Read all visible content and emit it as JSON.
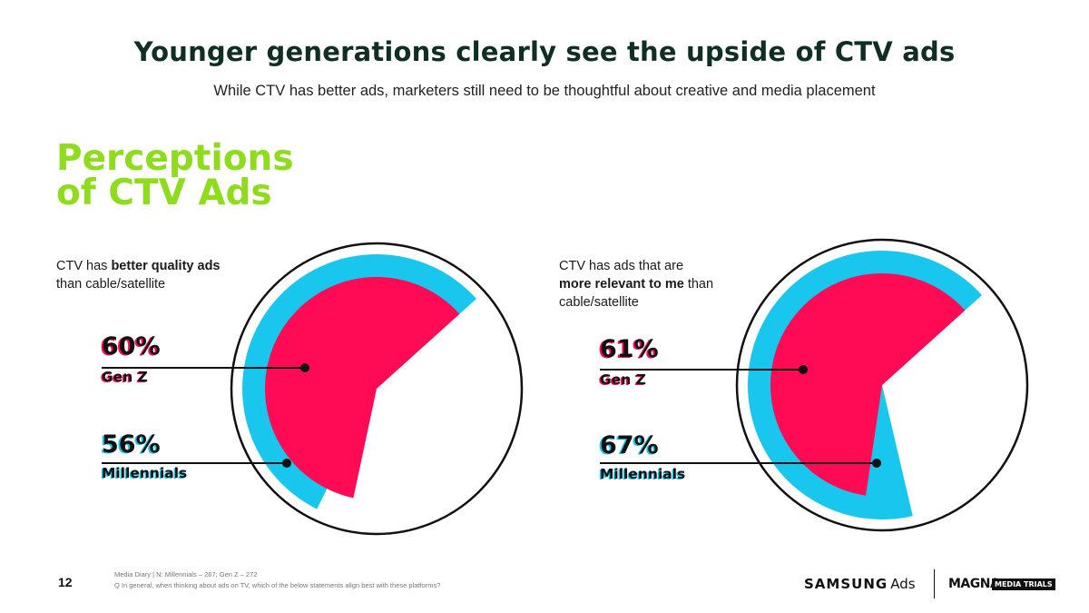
{
  "header": {
    "title": "Younger generations clearly see the upside of CTV ads",
    "subtitle": "While CTV has better ads, marketers still need to be thoughtful about creative and media placement"
  },
  "section": {
    "title_line1": "Perceptions",
    "title_line2": "of CTV Ads"
  },
  "colors": {
    "gen_z": "#ff0a54",
    "millennials": "#19c6ee",
    "heading_green": "#8fdc1e",
    "title_dark": "#0f2e24"
  },
  "chart_data": [
    {
      "type": "pie",
      "caption_pre": "CTV has ",
      "caption_bold": "better quality ads",
      "caption_post": " than cable/satellite",
      "series": [
        {
          "name": "Gen Z",
          "value": 60,
          "label": "60%"
        },
        {
          "name": "Millennials",
          "value": 56,
          "label": "56%"
        }
      ]
    },
    {
      "type": "pie",
      "caption_pre": "CTV has ads that are ",
      "caption_bold": "more relevant to me",
      "caption_post": " than cable/satellite",
      "series": [
        {
          "name": "Gen Z",
          "value": 61,
          "label": "61%"
        },
        {
          "name": "Millennials",
          "value": 67,
          "label": "67%"
        }
      ]
    }
  ],
  "footer": {
    "page_number": "12",
    "source": "Media Diary | N: Millennials – 267; Gen Z – 272",
    "question": "Q In general, when thinking about ads on TV, which of the below statements align best with these platforms?",
    "brand_samsung": "SAMSUNG",
    "brand_ads": "Ads",
    "brand_magna": "MAGNA",
    "brand_media_trials": "MEDIA TRIALS"
  }
}
